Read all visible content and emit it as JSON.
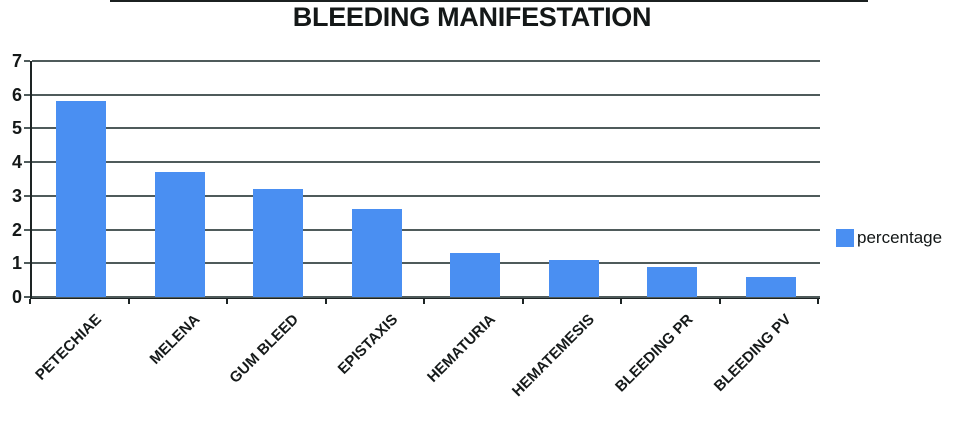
{
  "chart_data": {
    "type": "bar",
    "title": "BLEEDING MANIFESTATION",
    "categories": [
      "PETECHIAE",
      "MELENA",
      "GUM BLEED",
      "EPISTAXIS",
      "HEMATURIA",
      "HEMATEMESIS",
      "BLEEDING PR",
      "BLEEDING PV"
    ],
    "series": [
      {
        "name": "percentage",
        "values": [
          5.8,
          3.7,
          3.2,
          2.6,
          1.3,
          1.1,
          0.9,
          0.6
        ]
      }
    ],
    "ylim": [
      0,
      7
    ],
    "yticks": [
      0,
      1,
      2,
      3,
      4,
      5,
      6,
      7
    ],
    "grid": true,
    "legend_position": "right",
    "colors": {
      "bar": "#4a8ff2",
      "gridline": "#4f5b5b",
      "axis": "#1d2424",
      "text": "#141818",
      "background": "#ffffff"
    }
  }
}
